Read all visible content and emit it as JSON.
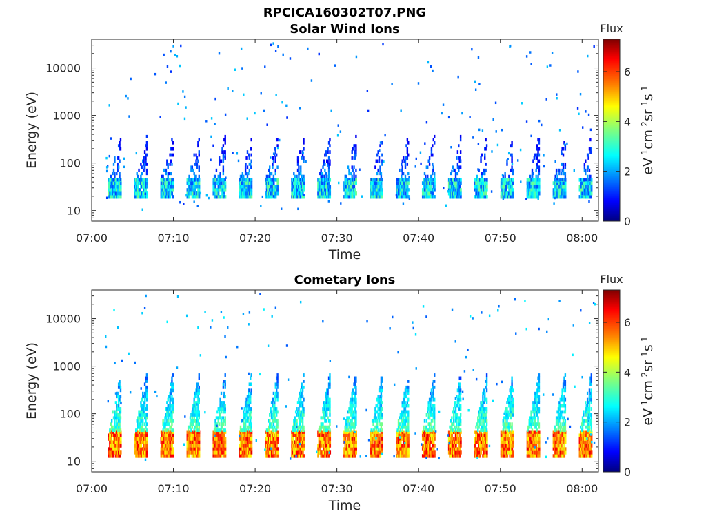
{
  "figure": {
    "title": "RPCICA160302T07.PNG"
  },
  "colors": {
    "axis": "#262626",
    "background": "#ffffff",
    "colormap": [
      "#00007f",
      "#0000ff",
      "#007fff",
      "#00ffff",
      "#7fff7f",
      "#ffff00",
      "#ff7f00",
      "#ff0000",
      "#7f0000"
    ]
  },
  "chart_data": [
    {
      "type": "heatmap",
      "title": "Solar Wind Ions",
      "xlabel": "Time",
      "ylabel": "Energy (eV)",
      "yscale": "log",
      "xlim": [
        "07:00",
        "08:02"
      ],
      "ylim": [
        6,
        40000
      ],
      "x_ticks": [
        "07:00",
        "07:10",
        "07:20",
        "07:30",
        "07:40",
        "07:50",
        "08:00"
      ],
      "y_ticks": [
        "10",
        "100",
        "1000",
        "10000"
      ],
      "colorbar": {
        "label_top": "Flux",
        "label": "eV-1cm-2sr-1s-1",
        "ticks": [
          "0",
          "2",
          "4",
          "6"
        ],
        "range": [
          0,
          7.3
        ]
      },
      "sweep_start_minutes": [
        2.0,
        5.2,
        8.4,
        11.6,
        14.8,
        18.0,
        21.2,
        24.4,
        27.6,
        30.8,
        34.0,
        37.2,
        40.4,
        43.6,
        46.8,
        50.0,
        53.2,
        56.4,
        59.6
      ],
      "sweep_duration_minutes": 1.6,
      "low_band_energy_eV": [
        18,
        42
      ],
      "low_band_flux": 2.5,
      "scattered_flux": 1.2
    },
    {
      "type": "heatmap",
      "title": "Cometary Ions",
      "xlabel": "Time",
      "ylabel": "Energy (eV)",
      "yscale": "log",
      "xlim": [
        "07:00",
        "08:02"
      ],
      "ylim": [
        6,
        40000
      ],
      "x_ticks": [
        "07:00",
        "07:10",
        "07:20",
        "07:30",
        "07:40",
        "07:50",
        "08:00"
      ],
      "y_ticks": [
        "10",
        "100",
        "1000",
        "10000"
      ],
      "colorbar": {
        "label_top": "Flux",
        "label": "eV-1cm-2sr-1s-1",
        "ticks": [
          "0",
          "2",
          "4",
          "6"
        ],
        "range": [
          0,
          7.3
        ]
      },
      "sweep_start_minutes": [
        2.0,
        5.2,
        8.4,
        11.6,
        14.8,
        18.0,
        21.2,
        24.4,
        27.6,
        30.8,
        34.0,
        37.2,
        40.4,
        43.6,
        46.8,
        50.0,
        53.2,
        56.4,
        59.6
      ],
      "sweep_duration_minutes": 1.6,
      "low_band_energy_eV": [
        12,
        42
      ],
      "low_band_flux": 5.5,
      "scattered_flux": 1.5
    }
  ]
}
